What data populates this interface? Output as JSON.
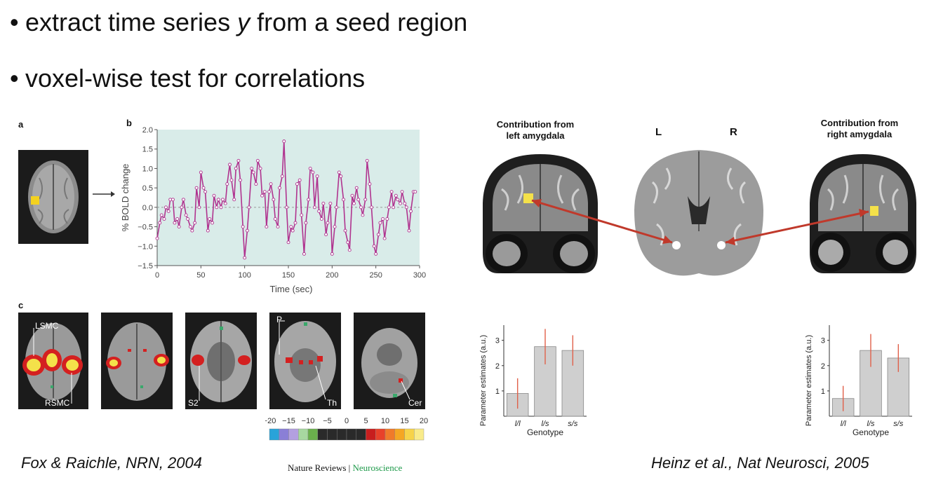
{
  "bullets": [
    {
      "text_before": "extract time series ",
      "italic": "y",
      "text_after": " from a seed region"
    },
    {
      "text": "voxel-wise test for correlations"
    }
  ],
  "left_figure": {
    "panel_a": "a",
    "panel_b": "b",
    "panel_c": "c",
    "brain_labels": [
      "LSMC",
      "RSMC",
      "S2",
      "P",
      "Th",
      "Cer"
    ],
    "colorbar": {
      "ticks": [
        "−20",
        "−15",
        "−10",
        "−5",
        "0",
        "5",
        "10",
        "15",
        "20"
      ],
      "colors": [
        "#29a3d9",
        "#8a7fd6",
        "#b3a0e0",
        "#a7d8a0",
        "#6ab04c",
        "#2a2a2a",
        "#2a2a2a",
        "#2a2a2a",
        "#2a2a2a",
        "#2a2a2a",
        "#c81e1e",
        "#e8412a",
        "#f07a2a",
        "#f5a623",
        "#f7d34a",
        "#f9eb8a"
      ]
    },
    "journal_name": "Nature Reviews",
    "journal_sep": " | ",
    "journal_section": "Neuroscience"
  },
  "chart_data": [
    {
      "type": "line",
      "title": "",
      "xlabel": "Time (sec)",
      "ylabel": "% BOLD change",
      "xlim": [
        0,
        300
      ],
      "ylim": [
        -1.5,
        2.0
      ],
      "xticks": [
        0,
        50,
        100,
        150,
        200,
        250,
        300
      ],
      "yticks": [
        -1.5,
        -1.0,
        -0.5,
        0.0,
        0.5,
        1.0,
        1.5,
        2.0
      ],
      "grid": false,
      "series": [
        {
          "color": "#b0338f",
          "x": [
            0,
            3,
            5,
            8,
            10,
            13,
            15,
            18,
            20,
            23,
            25,
            28,
            30,
            33,
            35,
            38,
            40,
            43,
            45,
            48,
            50,
            53,
            55,
            58,
            60,
            63,
            65,
            68,
            70,
            73,
            75,
            78,
            80,
            83,
            85,
            88,
            90,
            93,
            95,
            98,
            100,
            103,
            105,
            108,
            110,
            113,
            115,
            118,
            120,
            123,
            125,
            128,
            130,
            133,
            135,
            138,
            140,
            143,
            145,
            148,
            150,
            153,
            155,
            158,
            160,
            163,
            165,
            168,
            170,
            173,
            175,
            178,
            180,
            183,
            185,
            188,
            190,
            193,
            195,
            198,
            200,
            203,
            205,
            208,
            210,
            213,
            215,
            218,
            220,
            223,
            225,
            228,
            230,
            233,
            235,
            238,
            240,
            243,
            245,
            248,
            250,
            253,
            255,
            258,
            260,
            263,
            265,
            268,
            270,
            273,
            275,
            278,
            280,
            283,
            285,
            288,
            290,
            293,
            295
          ],
          "y": [
            -0.8,
            -0.4,
            -0.2,
            -0.3,
            0.0,
            -0.1,
            0.2,
            0.2,
            -0.4,
            -0.3,
            -0.5,
            0.0,
            0.2,
            -0.2,
            -0.3,
            -0.5,
            -0.6,
            -0.4,
            0.5,
            0.0,
            0.9,
            0.5,
            0.4,
            -0.6,
            -0.3,
            -0.4,
            0.3,
            0.0,
            0.2,
            0.0,
            0.2,
            0.1,
            0.6,
            1.1,
            0.7,
            0.2,
            1.0,
            1.2,
            0.7,
            -0.5,
            -1.3,
            -0.6,
            0.0,
            1.0,
            0.9,
            0.6,
            1.2,
            1.0,
            0.3,
            0.4,
            -0.5,
            0.4,
            0.6,
            0.2,
            -0.3,
            -0.5,
            0.5,
            0.8,
            1.7,
            0.0,
            -0.9,
            -0.5,
            -0.6,
            -0.4,
            0.6,
            0.7,
            -0.2,
            -1.2,
            -0.4,
            0.2,
            1.0,
            0.9,
            0.0,
            0.8,
            -0.1,
            -0.3,
            0.1,
            -0.7,
            -0.4,
            0.1,
            -1.2,
            -0.5,
            0.0,
            0.9,
            0.8,
            0.2,
            -0.6,
            -0.9,
            -1.1,
            0.3,
            0.1,
            0.5,
            0.2,
            0.0,
            -0.2,
            0.2,
            1.2,
            0.6,
            0.0,
            -1.0,
            -1.2,
            -0.7,
            -0.4,
            -0.3,
            -0.8,
            -0.3,
            0.0,
            0.4,
            0.0,
            0.3,
            0.2,
            0.1,
            0.4,
            0.1,
            0.0,
            -0.6,
            -0.1,
            0.4,
            0.4
          ]
        }
      ]
    },
    {
      "type": "bar",
      "title": "",
      "xlabel": "Genotype",
      "ylabel": "Parameter estimates (a.u.)",
      "categories": [
        "l/l",
        "l/s",
        "s/s"
      ],
      "ylim": [
        0,
        3.6
      ],
      "yticks": [
        1,
        2,
        3
      ],
      "series": [
        {
          "values": [
            0.9,
            2.75,
            2.6
          ],
          "error": [
            0.6,
            0.7,
            0.6
          ]
        }
      ]
    },
    {
      "type": "bar",
      "title": "",
      "xlabel": "Genotype",
      "ylabel": "Parameter estimates (a.u.)",
      "categories": [
        "l/l",
        "l/s",
        "s/s"
      ],
      "ylim": [
        0,
        3.6
      ],
      "yticks": [
        1,
        2,
        3
      ],
      "series": [
        {
          "values": [
            0.7,
            2.6,
            2.3
          ],
          "error": [
            0.5,
            0.65,
            0.55
          ]
        }
      ]
    }
  ],
  "right_figure": {
    "header_left": [
      "Contribution from",
      "left amygdala"
    ],
    "header_right": [
      "Contribution from",
      "right amygdala"
    ],
    "label_L": "L",
    "label_R": "R"
  },
  "citations": {
    "left": "Fox & Raichle, NRN, 2004",
    "right": "Heinz et al., Nat Neurosci, 2005"
  }
}
